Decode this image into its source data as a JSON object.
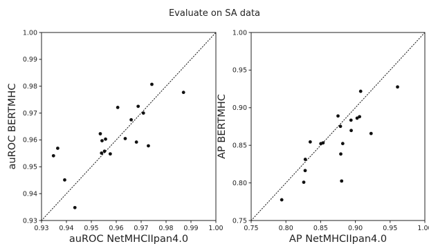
{
  "title": "Evaluate on SA data",
  "chart_data": [
    {
      "type": "scatter",
      "xlabel": "auROC NetMHCIIpan4.0",
      "ylabel": "auROC BERTMHC",
      "xlim": [
        0.93,
        1.0
      ],
      "ylim": [
        0.93,
        1.0
      ],
      "xticks": [
        "0.93",
        "0.94",
        "0.95",
        "0.96",
        "0.97",
        "0.98",
        "0.99",
        "1.00"
      ],
      "yticks": [
        "0.93",
        "0.94",
        "0.95",
        "0.96",
        "0.97",
        "0.98",
        "0.99",
        "1.00"
      ],
      "diagonal_line": "dotted y = x",
      "grid": false,
      "points": [
        [
          0.9348,
          0.9541
        ],
        [
          0.9365,
          0.9569
        ],
        [
          0.9393,
          0.9451
        ],
        [
          0.9434,
          0.9348
        ],
        [
          0.9536,
          0.9623
        ],
        [
          0.9541,
          0.9551
        ],
        [
          0.9543,
          0.9597
        ],
        [
          0.9553,
          0.9558
        ],
        [
          0.9557,
          0.9603
        ],
        [
          0.9576,
          0.9548
        ],
        [
          0.9606,
          0.9721
        ],
        [
          0.9636,
          0.9605
        ],
        [
          0.966,
          0.9675
        ],
        [
          0.9681,
          0.9592
        ],
        [
          0.9688,
          0.9725
        ],
        [
          0.9709,
          0.97
        ],
        [
          0.9729,
          0.9578
        ],
        [
          0.9743,
          0.9807
        ],
        [
          0.987,
          0.9777
        ]
      ]
    },
    {
      "type": "scatter",
      "xlabel": "AP NetMHCIIpan4.0",
      "ylabel": "AP BERTMHC",
      "xlim": [
        0.75,
        1.0
      ],
      "ylim": [
        0.75,
        1.0
      ],
      "xticks": [
        "0.75",
        "0.80",
        "0.85",
        "0.90",
        "0.95",
        "1.00"
      ],
      "yticks": [
        "0.75",
        "0.80",
        "0.85",
        "0.90",
        "0.95",
        "1.00"
      ],
      "diagonal_line": "dotted y = x",
      "grid": false,
      "points": [
        [
          0.794,
          0.7775
        ],
        [
          0.8257,
          0.8009
        ],
        [
          0.8277,
          0.8164
        ],
        [
          0.8279,
          0.8313
        ],
        [
          0.835,
          0.8545
        ],
        [
          0.8503,
          0.8522
        ],
        [
          0.8535,
          0.8532
        ],
        [
          0.875,
          0.889
        ],
        [
          0.8785,
          0.8752
        ],
        [
          0.879,
          0.8384
        ],
        [
          0.8802,
          0.8025
        ],
        [
          0.8818,
          0.8523
        ],
        [
          0.8937,
          0.8834
        ],
        [
          0.894,
          0.8697
        ],
        [
          0.9025,
          0.8861
        ],
        [
          0.906,
          0.888
        ],
        [
          0.9076,
          0.9218
        ],
        [
          0.9226,
          0.8657
        ],
        [
          0.9607,
          0.9276
        ]
      ]
    }
  ]
}
